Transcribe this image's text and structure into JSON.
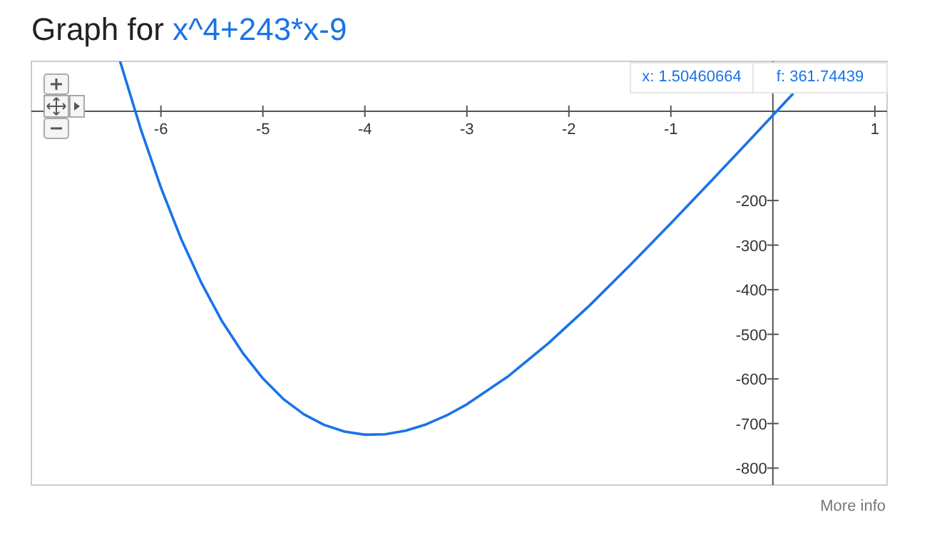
{
  "chart_data": {
    "type": "line",
    "title": "Graph for",
    "subtitle": "x^4+243*x-9",
    "xlim": [
      -7.27,
      1.12
    ],
    "ylim": [
      -838,
      112
    ],
    "xticks": [
      -6,
      -5,
      -4,
      -3,
      -2,
      -1,
      1
    ],
    "yticks": [
      -200,
      -300,
      -400,
      -500,
      -600,
      -700,
      -800
    ],
    "marker": "none",
    "line_style": "solid",
    "annotations": [
      "x: 1.50460664",
      "f: 361.74439",
      "More info"
    ],
    "series": [
      {
        "color": "#1a73e8",
        "x": [
          -6.4,
          -6.2,
          -6.0,
          -5.8,
          -5.6,
          -5.4,
          -5.2,
          -5.0,
          -4.8,
          -4.6,
          -4.4,
          -4.2,
          -4.0,
          -3.8,
          -3.6,
          -3.4,
          -3.2,
          -3.0,
          -2.6,
          -2.2,
          -1.8,
          -1.4,
          -1.0,
          -0.6,
          -0.2,
          0.2
        ],
        "values": [
          112,
          -38,
          -171,
          -287,
          -386,
          -471,
          -541,
          -599,
          -645,
          -679,
          -703,
          -718,
          -725,
          -724,
          -716,
          -702,
          -682,
          -657,
          -595,
          -520,
          -436,
          -345,
          -251,
          -155,
          -58,
          40
        ]
      }
    ]
  }
}
